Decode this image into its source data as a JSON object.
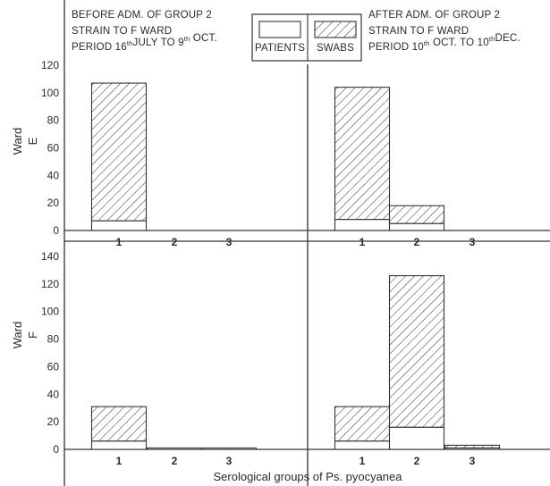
{
  "chart_data": {
    "type": "bar",
    "stacked": true,
    "legend": {
      "placement": "top-center",
      "entries": [
        {
          "label": "PATIENTS",
          "pattern": "plain"
        },
        {
          "label": "SWABS",
          "pattern": "hatched"
        }
      ]
    },
    "column_headers": [
      {
        "lines": [
          {
            "text": "BEFORE ADM. OF GROUP 2"
          },
          {
            "text": "STRAIN TO F WARD"
          },
          {
            "parts": [
              {
                "t": "PERIOD 16",
                "sup": false
              },
              {
                "t": "th",
                "sup": true
              },
              {
                "t": "JULY TO 9",
                "sup": false
              },
              {
                "t": "th",
                "sup": true
              },
              {
                "t": " OCT.",
                "sup": false
              }
            ]
          }
        ]
      },
      {
        "lines": [
          {
            "text": "AFTER ADM. OF GROUP 2"
          },
          {
            "text": "STRAIN TO F WARD"
          },
          {
            "parts": [
              {
                "t": "PERIOD 10",
                "sup": false
              },
              {
                "t": "th",
                "sup": true
              },
              {
                "t": " OCT. TO 10",
                "sup": false
              },
              {
                "t": "th",
                "sup": true
              },
              {
                "t": "DEC.",
                "sup": false
              }
            ]
          }
        ]
      }
    ],
    "rows": [
      {
        "ward_label": "Ward",
        "ward_name": "E",
        "ylim": [
          0,
          120
        ],
        "yticks": [
          "0",
          "20",
          "40",
          "60",
          "80",
          "100",
          "120"
        ]
      },
      {
        "ward_label": "Ward",
        "ward_name": "F",
        "ylim": [
          0,
          140
        ],
        "yticks": [
          "0",
          "20",
          "40",
          "60",
          "80",
          "100",
          "120",
          "140"
        ]
      }
    ],
    "categories": [
      "1",
      "2",
      "3"
    ],
    "xlabel": "Serological groups of Ps. pyocyanea",
    "panels": [
      {
        "row": 0,
        "col": 0,
        "patients": [
          7,
          0,
          0
        ],
        "swabs": [
          100,
          0,
          0
        ]
      },
      {
        "row": 0,
        "col": 1,
        "patients": [
          8,
          5,
          0
        ],
        "swabs": [
          96,
          13,
          0
        ]
      },
      {
        "row": 1,
        "col": 0,
        "patients": [
          6,
          1,
          1
        ],
        "swabs": [
          25,
          0,
          0
        ]
      },
      {
        "row": 1,
        "col": 1,
        "patients": [
          6,
          16,
          1
        ],
        "swabs": [
          25,
          110,
          2
        ]
      }
    ]
  }
}
